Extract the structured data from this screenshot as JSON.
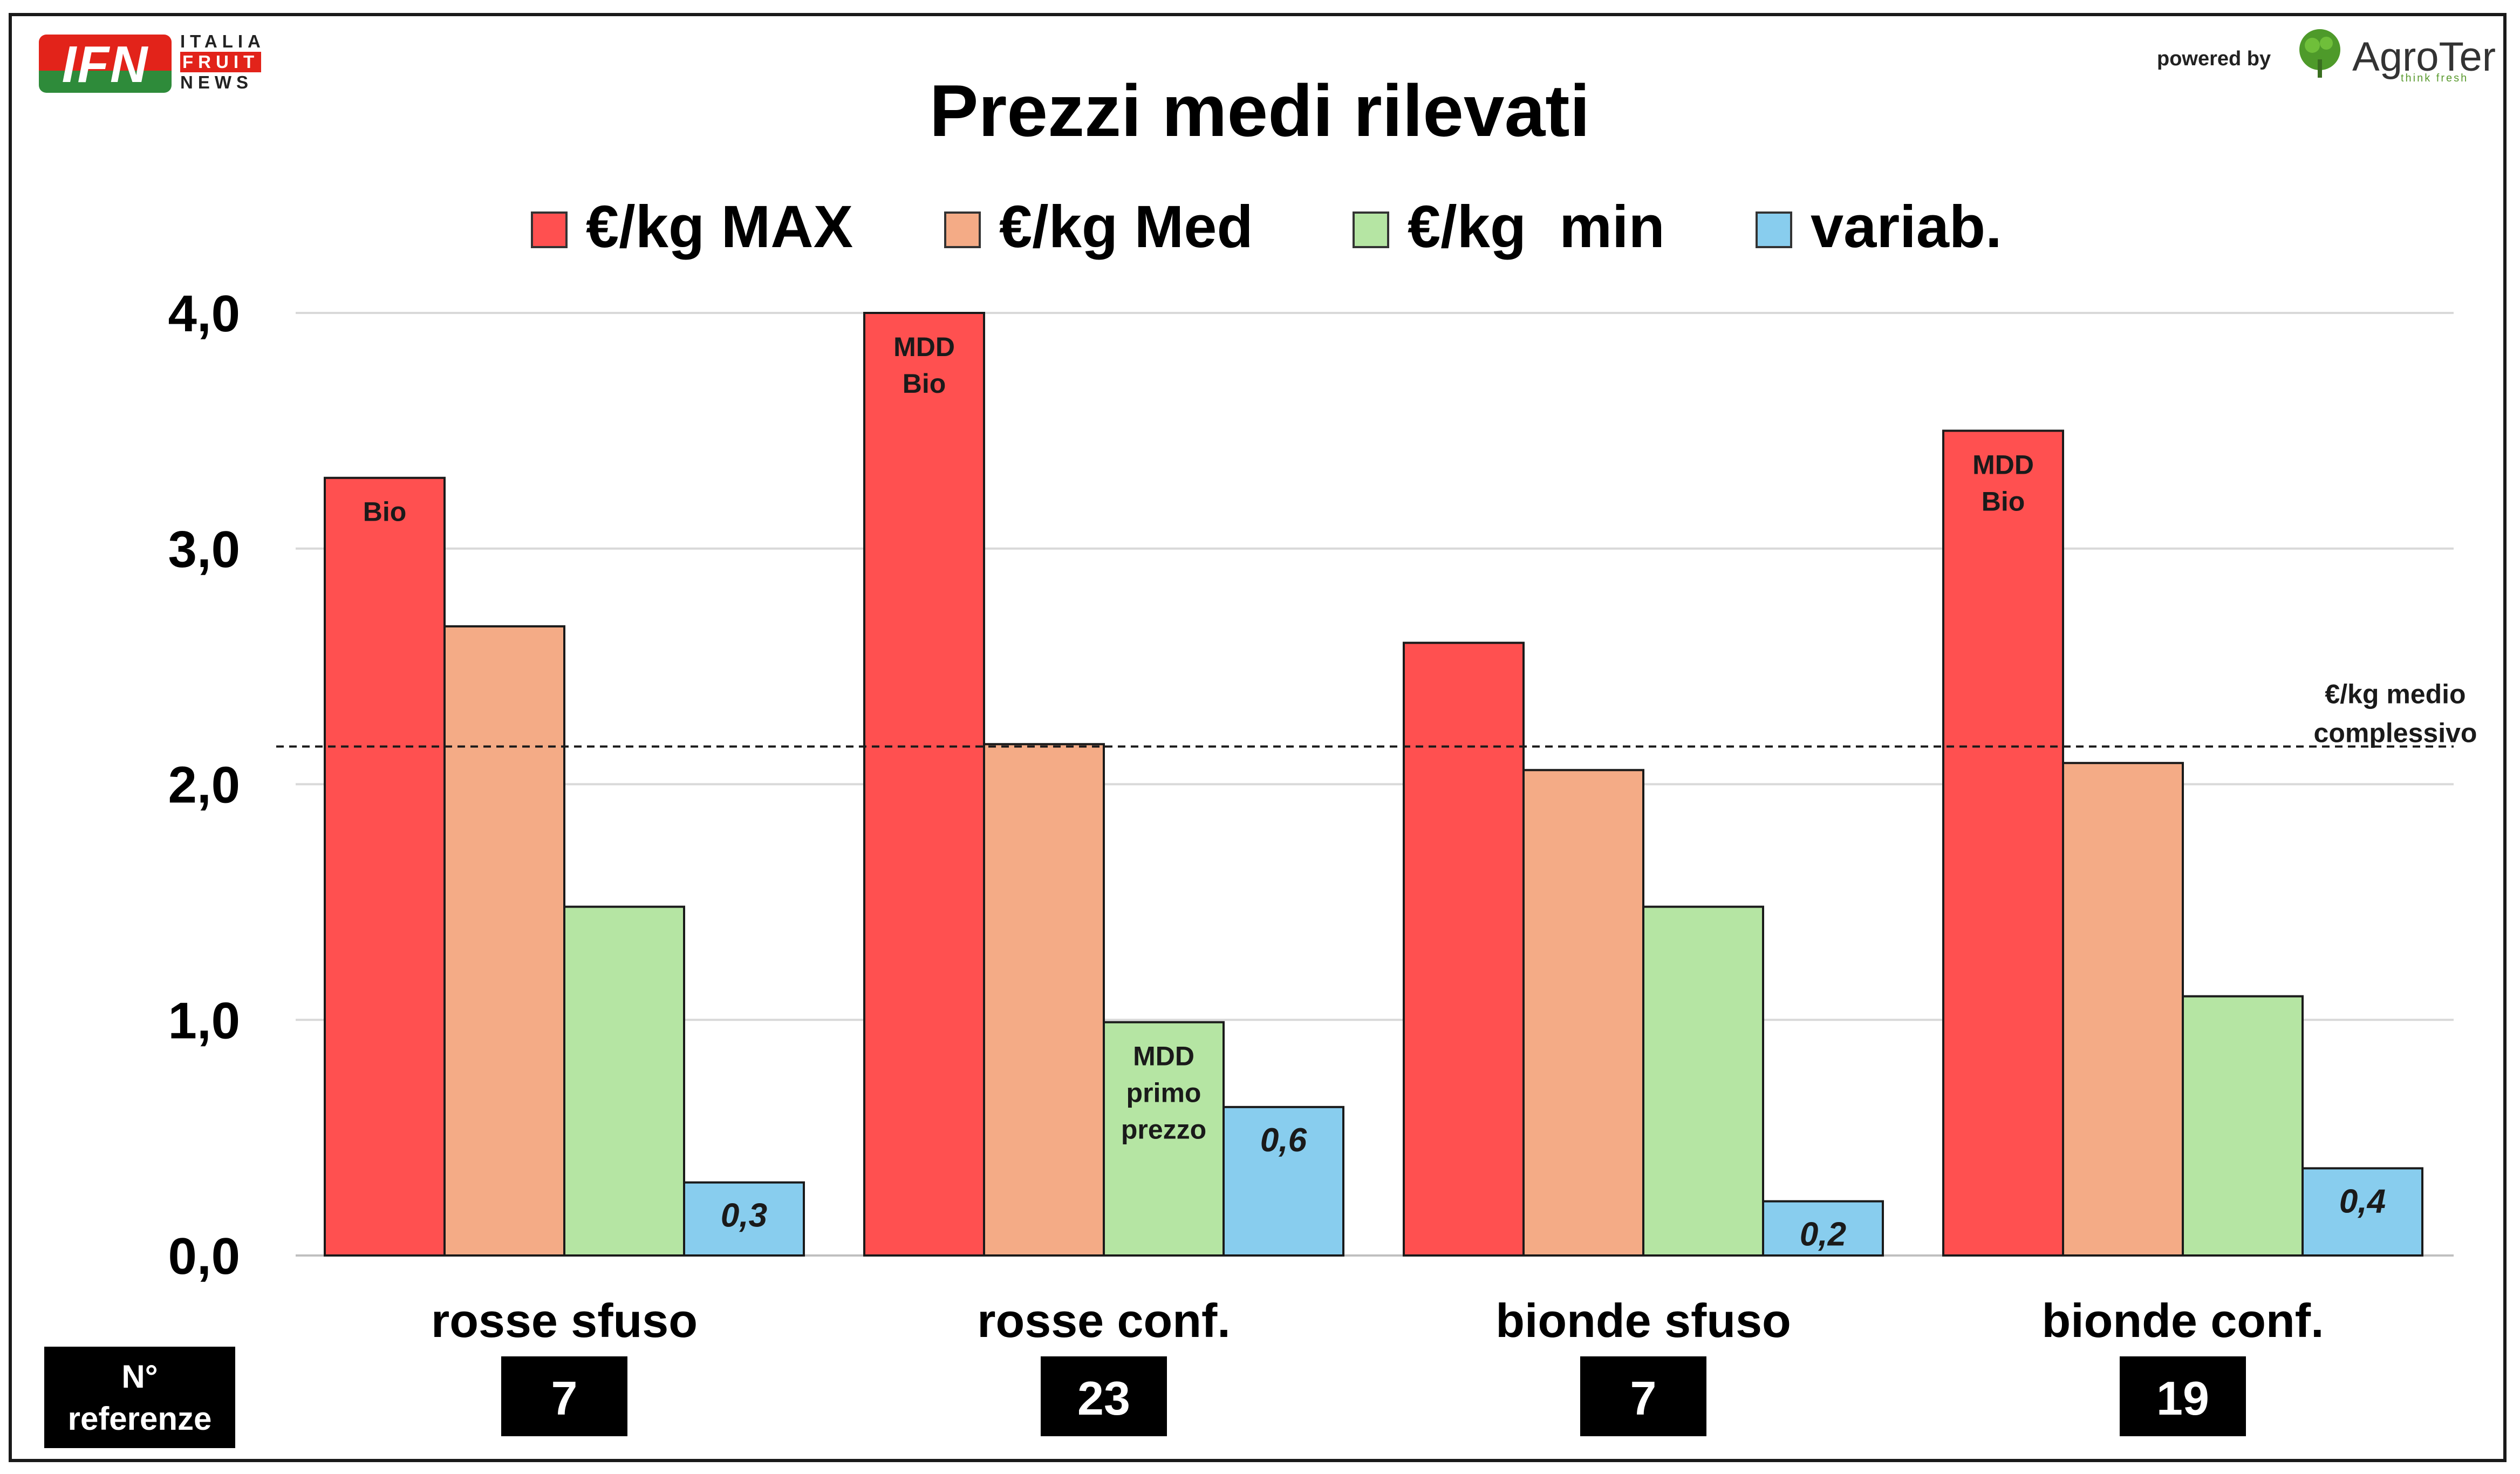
{
  "header": {
    "ifn_logo_text": "IFN",
    "ifn_logo_sub": [
      "ITALIA",
      "FRUIT",
      "NEWS"
    ],
    "powered_by": "powered by",
    "agroter_name": "AgroTer",
    "agroter_tagline": "think fresh"
  },
  "chart_data": {
    "type": "bar",
    "title": "Prezzi medi rilevati",
    "categories": [
      "rosse sfuso",
      "rosse conf.",
      "bionde sfuso",
      "bionde conf."
    ],
    "series": [
      {
        "name": "€/kg MAX",
        "color": "#ff5050",
        "values": [
          3.3,
          4.0,
          2.6,
          3.5
        ]
      },
      {
        "name": "€/kg Med",
        "color": "#f4ab86",
        "values": [
          2.67,
          2.17,
          2.06,
          2.09
        ]
      },
      {
        "name": "€/kg  min",
        "color": "#b5e5a3",
        "values": [
          1.48,
          0.99,
          1.48,
          1.1
        ]
      },
      {
        "name": "variab.",
        "color": "#88cdee",
        "values": [
          0.31,
          0.63,
          0.23,
          0.37
        ]
      }
    ],
    "variab_labels": [
      "0,3",
      "0,6",
      "0,2",
      "0,4"
    ],
    "bar_annotations": [
      {
        "category": 0,
        "series": 0,
        "lines": [
          "Bio"
        ]
      },
      {
        "category": 1,
        "series": 0,
        "lines": [
          "MDD",
          "Bio"
        ]
      },
      {
        "category": 1,
        "series": 2,
        "lines": [
          "MDD",
          "primo",
          "prezzo"
        ]
      },
      {
        "category": 3,
        "series": 0,
        "lines": [
          "MDD",
          "Bio"
        ]
      }
    ],
    "y_ticks": [
      "0,0",
      "1,0",
      "2,0",
      "3,0",
      "4,0"
    ],
    "ylim": [
      0,
      4
    ],
    "reference_line": {
      "value": 2.16,
      "label_lines": [
        "€/kg medio",
        "complessivo"
      ]
    },
    "n_referenze_label_lines": [
      "N°",
      "referenze"
    ],
    "n_referenze": [
      "7",
      "23",
      "7",
      "19"
    ],
    "legend_position": "top",
    "grid": true
  }
}
